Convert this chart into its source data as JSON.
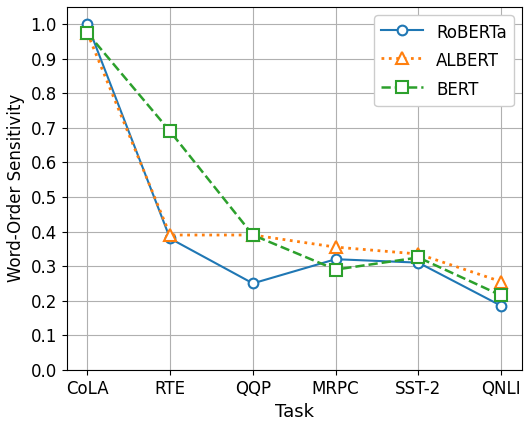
{
  "tasks": [
    "CoLA",
    "RTE",
    "QQP",
    "MRPC",
    "SST-2",
    "QNLI"
  ],
  "roberta": [
    1.0,
    0.38,
    0.25,
    0.32,
    0.31,
    0.185
  ],
  "albert": [
    0.975,
    0.39,
    0.39,
    0.355,
    0.335,
    0.255
  ],
  "bert": [
    0.975,
    0.69,
    0.39,
    0.29,
    0.325,
    0.215
  ],
  "roberta_color": "#1f77b4",
  "albert_color": "#ff7f0e",
  "bert_color": "#2ca02c",
  "ylabel": "Word-Order Sensitivity",
  "xlabel": "Task",
  "ylim": [
    0.0,
    1.05
  ],
  "legend_labels": [
    "RoBERTa",
    "ALBERT",
    "BERT"
  ]
}
